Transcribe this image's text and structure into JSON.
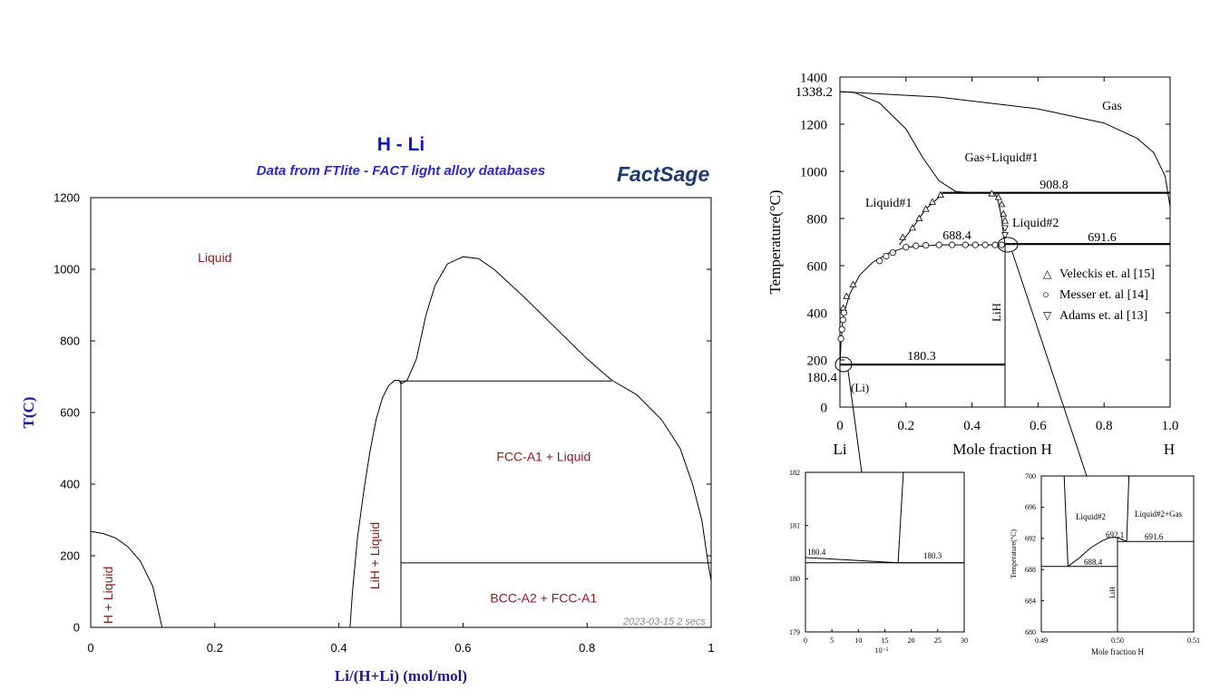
{
  "chart_data": [
    {
      "type": "line",
      "title": "H - Li",
      "subtitle": "Data from FTlite - FACT light alloy databases",
      "logo": "FactSage",
      "xlabel": "Li/(H+Li) (mol/mol)",
      "ylabel": "T(C)",
      "xlim": [
        0,
        1
      ],
      "ylim": [
        0,
        1200
      ],
      "xticks": [
        "0",
        "0.2",
        "0.4",
        "0.6",
        "0.8",
        "1"
      ],
      "yticks": [
        "0",
        "200",
        "400",
        "600",
        "800",
        "1000",
        "1200"
      ],
      "footer": "2023-03-15  2 secs",
      "regions": [
        {
          "label": "Liquid",
          "x": 0.2,
          "y": 1020
        },
        {
          "label": "FCC-A1 + Liquid",
          "x": 0.73,
          "y": 465
        },
        {
          "label": "BCC-A2 + FCC-A1",
          "x": 0.73,
          "y": 70
        },
        {
          "label": "H + Liquid",
          "x": 0.035,
          "y": 90,
          "rotated": true
        },
        {
          "label": "LiH + Liquid",
          "x": 0.465,
          "y": 200,
          "rotated": true
        }
      ],
      "series": [
        {
          "points": [
            [
              0.0,
              268
            ],
            [
              0.02,
              262
            ],
            [
              0.04,
              250
            ],
            [
              0.06,
              225
            ],
            [
              0.08,
              185
            ],
            [
              0.1,
              115
            ],
            [
              0.115,
              0
            ]
          ]
        },
        {
          "points": [
            [
              0.418,
              0
            ],
            [
              0.422,
              100
            ],
            [
              0.43,
              250
            ],
            [
              0.44,
              380
            ],
            [
              0.45,
              490
            ],
            [
              0.46,
              580
            ],
            [
              0.47,
              640
            ],
            [
              0.48,
              675
            ],
            [
              0.49,
              690
            ],
            [
              0.497,
              690
            ],
            [
              0.5,
              680
            ]
          ]
        },
        {
          "points": [
            [
              0.5,
              680
            ],
            [
              0.51,
              690
            ],
            [
              0.525,
              750
            ],
            [
              0.54,
              870
            ],
            [
              0.555,
              955
            ],
            [
              0.575,
              1015
            ],
            [
              0.6,
              1035
            ],
            [
              0.625,
              1030
            ],
            [
              0.65,
              1000
            ],
            [
              0.7,
              920
            ],
            [
              0.75,
              835
            ],
            [
              0.8,
              750
            ],
            [
              0.84,
              690
            ]
          ]
        },
        {
          "points": [
            [
              0.84,
              690
            ],
            [
              0.88,
              650
            ],
            [
              0.92,
              580
            ],
            [
              0.95,
              500
            ],
            [
              0.97,
              400
            ],
            [
              0.985,
              300
            ],
            [
              0.995,
              180
            ],
            [
              1.0,
              130
            ]
          ]
        },
        {
          "points": [
            [
              0.5,
              0
            ],
            [
              0.5,
              690
            ]
          ]
        },
        {
          "points": [
            [
              0.5,
              688
            ],
            [
              0.84,
              688
            ]
          ]
        },
        {
          "points": [
            [
              0.5,
              180
            ],
            [
              1.0,
              180
            ]
          ]
        },
        {
          "points": [
            [
              1.0,
              130
            ],
            [
              1.0,
              180
            ]
          ]
        }
      ]
    },
    {
      "type": "line",
      "xlabel": "Mole fraction H",
      "ylabel": "Temperature(°C)",
      "xlim": [
        0,
        1
      ],
      "ylim": [
        0,
        1400
      ],
      "xticks": [
        "0",
        "0.2",
        "0.4",
        "0.6",
        "0.8",
        "1.0"
      ],
      "yticks": [
        "0",
        "200",
        "400",
        "600",
        "800",
        "1000",
        "1200",
        "1400"
      ],
      "extra_yticks": [
        "1338.2",
        "180.4"
      ],
      "end_labels": [
        "Li",
        "H"
      ],
      "regions": [
        "Gas",
        "Gas+Liquid#1",
        "Liquid#1",
        "Liquid#2",
        "LiH",
        "(Li)"
      ],
      "annotations": [
        "908.8",
        "688.4",
        "691.6",
        "180.3"
      ],
      "legend": [
        {
          "marker": "△",
          "label": "Veleckis et. al [15]"
        },
        {
          "marker": "○",
          "label": "Messer et. al [14]"
        },
        {
          "marker": "▽",
          "label": "Adams et. al [13]"
        }
      ],
      "isotherms": [
        [
          0,
          0.5,
          180.3
        ],
        [
          0.5,
          1.0,
          691.6
        ],
        [
          0.31,
          1.0,
          908.8
        ]
      ],
      "series": [
        {
          "name": "",
          "points": [
            [
              0,
              1338.2
            ],
            [
              0.04,
              1336
            ],
            [
              0.12,
              1290
            ],
            [
              0.2,
              1180
            ],
            [
              0.25,
              1060
            ],
            [
              0.3,
              960
            ],
            [
              0.35,
              915
            ],
            [
              0.4,
              909
            ]
          ]
        },
        {
          "name": "",
          "points": [
            [
              0,
              1338.2
            ],
            [
              0.3,
              1315
            ],
            [
              0.6,
              1265
            ],
            [
              0.8,
              1205
            ],
            [
              0.9,
              1140
            ],
            [
              0.95,
              1080
            ],
            [
              0.985,
              980
            ],
            [
              1.0,
              850
            ]
          ]
        },
        {
          "name": "",
          "points": [
            [
              0,
              180.4
            ],
            [
              0.003,
              270
            ],
            [
              0.01,
              390
            ],
            [
              0.03,
              480
            ],
            [
              0.06,
              560
            ],
            [
              0.1,
              615
            ],
            [
              0.15,
              655
            ],
            [
              0.2,
              678
            ],
            [
              0.3,
              688
            ],
            [
              0.5,
              688
            ]
          ]
        },
        {
          "name": "",
          "points": [
            [
              0.18,
              688
            ],
            [
              0.22,
              760
            ],
            [
              0.26,
              840
            ],
            [
              0.3,
              890
            ],
            [
              0.31,
              909
            ]
          ]
        },
        {
          "name": "",
          "points": [
            [
              0.47,
              909
            ],
            [
              0.48,
              870
            ],
            [
              0.49,
              800
            ],
            [
              0.495,
              740
            ],
            [
              0.5,
              692
            ]
          ]
        },
        {
          "name": "Veleckis et. al [15]",
          "marker": "triangle-up",
          "points": [
            [
              0.01,
              420
            ],
            [
              0.02,
              470
            ],
            [
              0.04,
              520
            ],
            [
              0.19,
              720
            ],
            [
              0.22,
              760
            ],
            [
              0.24,
              800
            ],
            [
              0.26,
              840
            ],
            [
              0.28,
              870
            ],
            [
              0.305,
              900
            ],
            [
              0.46,
              905
            ],
            [
              0.48,
              890
            ],
            [
              0.49,
              860
            ],
            [
              0.495,
              820
            ],
            [
              0.5,
              790
            ]
          ]
        },
        {
          "name": "Messer et. al [14]",
          "marker": "circle",
          "points": [
            [
              0.003,
              290
            ],
            [
              0.006,
              330
            ],
            [
              0.009,
              370
            ],
            [
              0.012,
              400
            ],
            [
              0.12,
              620
            ],
            [
              0.14,
              640
            ],
            [
              0.16,
              655
            ],
            [
              0.2,
              678
            ],
            [
              0.23,
              684
            ],
            [
              0.26,
              686
            ],
            [
              0.3,
              688
            ],
            [
              0.34,
              688
            ],
            [
              0.38,
              688
            ],
            [
              0.41,
              688
            ],
            [
              0.44,
              688
            ],
            [
              0.47,
              688
            ],
            [
              0.49,
              688
            ]
          ]
        },
        {
          "name": "Adams et. al [13]",
          "marker": "triangle-down",
          "points": [
            [
              0.5,
              730
            ],
            [
              0.5,
              760
            ]
          ]
        }
      ]
    },
    {
      "type": "line",
      "xlim": [
        0,
        30
      ],
      "ylim": [
        179,
        182
      ],
      "xticks": [
        "0",
        "5",
        "10",
        "15",
        "20",
        "25",
        "30"
      ],
      "yticks": [
        "179",
        "180",
        "181",
        "182"
      ],
      "x_scale_label": "10⁻⁵",
      "annotations": [
        "180.4",
        "180.3"
      ],
      "series": [
        {
          "points": [
            [
              0,
              180.4
            ],
            [
              17.5,
              180.3
            ],
            [
              30,
              180.3
            ]
          ]
        },
        {
          "points": [
            [
              0,
              180.3
            ],
            [
              30,
              180.3
            ]
          ]
        },
        {
          "points": [
            [
              17.5,
              180.3
            ],
            [
              18.5,
              182
            ]
          ]
        }
      ]
    },
    {
      "type": "line",
      "xlabel": "Mole fraction H",
      "ylabel": "Temperature(°C)",
      "xlim": [
        0.49,
        0.51
      ],
      "ylim": [
        680,
        700
      ],
      "xticks": [
        "0.49",
        "0.50",
        "0.51"
      ],
      "yticks": [
        "680",
        "684",
        "688",
        "692",
        "696",
        "700"
      ],
      "regions": [
        "Liquid#2",
        "Liquid#2+Gas",
        "LiH"
      ],
      "annotations": [
        "692.1",
        "688.4",
        "691.6"
      ],
      "series": [
        {
          "points": [
            [
              0.49,
              688.4
            ],
            [
              0.5,
              688.4
            ]
          ]
        },
        {
          "points": [
            [
              0.5,
              691.6
            ],
            [
              0.51,
              691.6
            ]
          ]
        },
        {
          "points": [
            [
              0.4935,
              688.4
            ],
            [
              0.495,
              689.5
            ],
            [
              0.4965,
              690.8
            ],
            [
              0.498,
              691.7
            ],
            [
              0.499,
              692.1
            ],
            [
              0.5,
              692.1
            ],
            [
              0.5007,
              691.8
            ],
            [
              0.5012,
              691.6
            ]
          ]
        },
        {
          "points": [
            [
              0.5,
              680
            ],
            [
              0.5,
              692.1
            ]
          ]
        },
        {
          "points": [
            [
              0.4935,
              688.4
            ],
            [
              0.493,
              700
            ]
          ]
        },
        {
          "points": [
            [
              0.5012,
              691.6
            ],
            [
              0.5015,
              700
            ]
          ]
        }
      ]
    }
  ]
}
